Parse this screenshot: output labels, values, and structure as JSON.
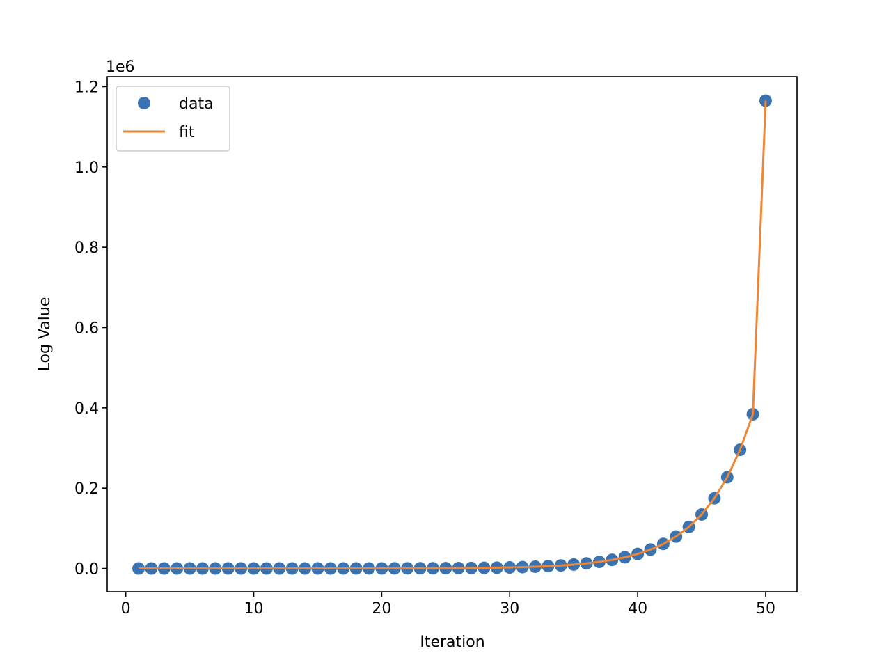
{
  "chart_data": {
    "type": "scatter",
    "xlabel": "Iteration",
    "ylabel": "Log Value",
    "y_offset_label": "1e6",
    "xlim": [
      -1.45,
      52.45
    ],
    "ylim": [
      -58000,
      1225000
    ],
    "x_ticks": [
      0,
      10,
      20,
      30,
      40,
      50
    ],
    "x_tick_labels": [
      "0",
      "10",
      "20",
      "30",
      "40",
      "50"
    ],
    "y_ticks": [
      0,
      200000,
      400000,
      600000,
      800000,
      1000000,
      1200000
    ],
    "y_tick_labels": [
      "0.0",
      "0.2",
      "0.4",
      "0.6",
      "0.8",
      "1.0",
      "1.2"
    ],
    "grid": false,
    "legend_position": "upper left",
    "series": [
      {
        "name": "data",
        "kind": "scatter",
        "color": "#3b73b0",
        "x": [
          1,
          2,
          3,
          4,
          5,
          6,
          7,
          8,
          9,
          10,
          11,
          12,
          13,
          14,
          15,
          16,
          17,
          18,
          19,
          20,
          21,
          22,
          23,
          24,
          25,
          26,
          27,
          28,
          29,
          30,
          31,
          32,
          33,
          34,
          35,
          36,
          37,
          38,
          39,
          40,
          41,
          42,
          43,
          44,
          45,
          46,
          47,
          48,
          49,
          50
        ],
        "y": [
          1.3,
          1.7,
          2.2,
          2.9,
          3.7,
          4.8,
          6.3,
          8.2,
          10.6,
          13.8,
          18,
          23,
          30,
          39,
          51,
          67,
          87,
          113,
          147,
          190,
          248,
          322,
          419,
          544,
          708,
          920,
          1196,
          1555,
          2021,
          2628,
          3416,
          4441,
          5774,
          7506,
          9758,
          12685,
          16490,
          21437,
          27868,
          36229,
          47098,
          61227,
          79595,
          103473,
          134515,
          174870,
          227331,
          295530,
          384189,
          1165000
        ]
      },
      {
        "name": "fit",
        "kind": "line",
        "color": "#ef8636"
      }
    ]
  }
}
